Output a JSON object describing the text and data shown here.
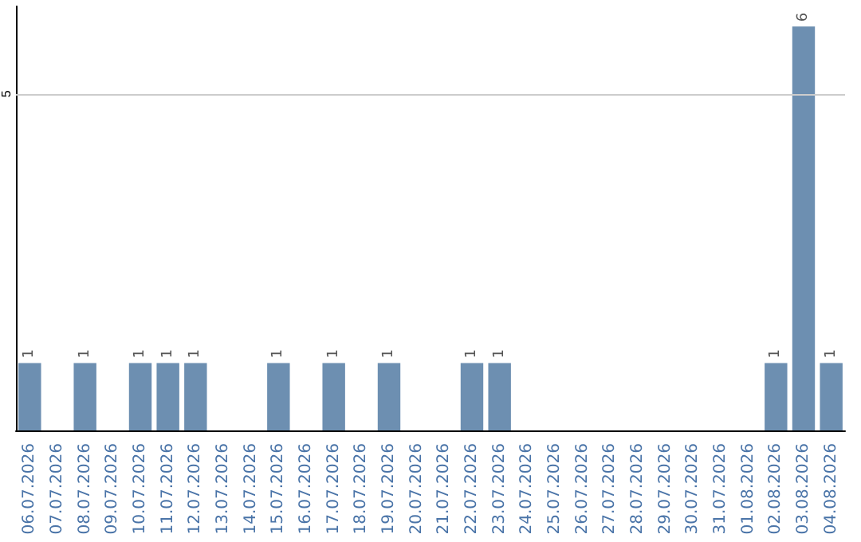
{
  "chart_data": {
    "type": "bar",
    "categories": [
      "06.07.2026",
      "07.07.2026",
      "08.07.2026",
      "09.07.2026",
      "10.07.2026",
      "11.07.2026",
      "12.07.2026",
      "13.07.2026",
      "14.07.2026",
      "15.07.2026",
      "16.07.2026",
      "17.07.2026",
      "18.07.2026",
      "19.07.2026",
      "20.07.2026",
      "21.07.2026",
      "22.07.2026",
      "23.07.2026",
      "24.07.2026",
      "25.07.2026",
      "26.07.2026",
      "27.07.2026",
      "28.07.2026",
      "29.07.2026",
      "30.07.2026",
      "31.07.2026",
      "01.08.2026",
      "02.08.2026",
      "03.08.2026",
      "04.08.2026"
    ],
    "values": [
      1,
      0,
      1,
      0,
      1,
      1,
      1,
      0,
      0,
      1,
      0,
      1,
      0,
      1,
      0,
      0,
      1,
      1,
      0,
      0,
      0,
      0,
      0,
      0,
      0,
      0,
      0,
      1,
      6,
      1
    ],
    "value_labels": [
      "1",
      null,
      "1",
      null,
      "1",
      "1",
      "1",
      null,
      null,
      "1",
      null,
      "1",
      null,
      "1",
      null,
      null,
      "1",
      "1",
      null,
      null,
      null,
      null,
      null,
      null,
      null,
      null,
      null,
      "1",
      "6",
      "1"
    ],
    "color": "#6d8fb1",
    "ylim": [
      0,
      6.3
    ],
    "yticks": [
      5
    ],
    "grid": "y"
  }
}
